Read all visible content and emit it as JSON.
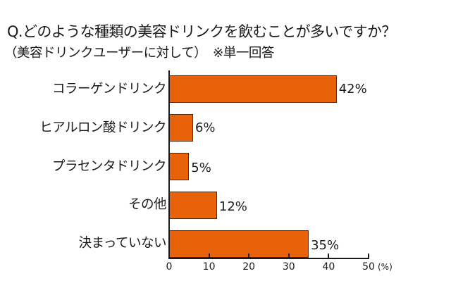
{
  "header": {
    "title": "Q.どのような種類の美容ドリンクを飲むことが多いですか？",
    "subtitle": "（美容ドリンクユーザーに対して）　※単一回答"
  },
  "colors": {
    "bar": "#E8620A",
    "axis": "#1a1a1a"
  },
  "chart_data": {
    "type": "bar",
    "orientation": "horizontal",
    "title": "Q.どのような種類の美容ドリンクを飲むことが多いですか？",
    "subtitle": "（美容ドリンクユーザーに対して）　※単一回答",
    "categories": [
      "コラーゲンドリンク",
      "ヒアルロン酸ドリンク",
      "プラセンタドリンク",
      "その他",
      "決まっていない"
    ],
    "values": [
      42,
      6,
      5,
      12,
      35
    ],
    "value_labels": [
      "42%",
      "6%",
      "5%",
      "12%",
      "35%"
    ],
    "xlabel": "(%)",
    "ylabel": "",
    "xlim": [
      0,
      50
    ],
    "x_ticks": [
      "0",
      "10",
      "20",
      "30",
      "40",
      "50"
    ],
    "grid": false,
    "legend": null
  },
  "axis": {
    "unit": "(%)",
    "ticks": [
      "0",
      "10",
      "20",
      "30",
      "40",
      "50"
    ]
  }
}
